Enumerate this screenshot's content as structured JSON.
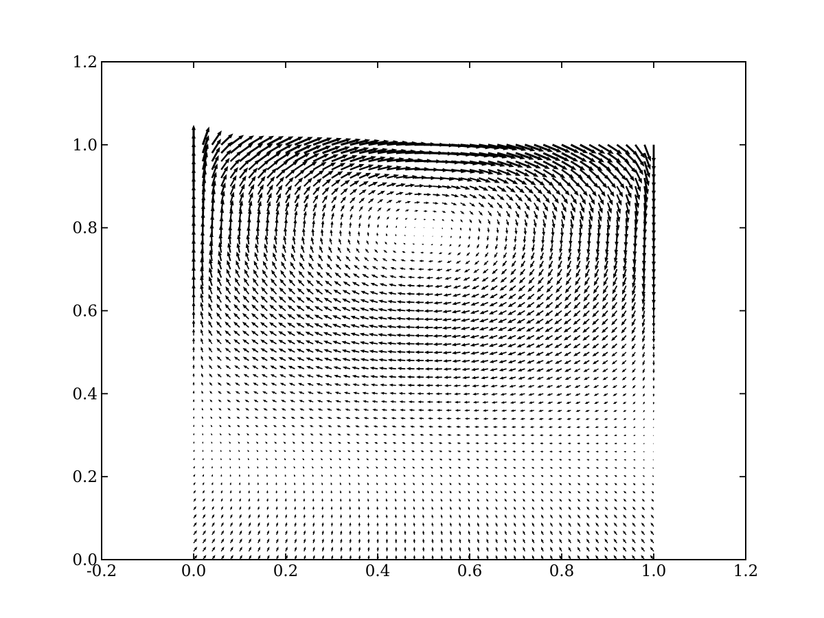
{
  "figure": {
    "background": "#ffffff",
    "frame_color": "#000000",
    "title": ""
  },
  "chart_data": {
    "type": "quiver",
    "title": "",
    "xlabel": "",
    "ylabel": "",
    "description": "Velocity vector field of a lid-driven cavity flow: lid moves right along y=1, upward jet on left wall, downward jet on right wall, clockwise primary vortex centered near (0.5, 0.79), broad leftward return band below the vortex, weak rising flow converging toward x=0.5 near the bottom.",
    "arrow_color": "#000000",
    "xlim": [
      -0.2,
      1.2
    ],
    "ylim": [
      0.0,
      1.2
    ],
    "xtick_labels": [
      "-0.2",
      "0.0",
      "0.2",
      "0.4",
      "0.6",
      "0.8",
      "1.0",
      "1.2"
    ],
    "xtick_values": [
      -0.2,
      0.0,
      0.2,
      0.4,
      0.6,
      0.8,
      1.0,
      1.2
    ],
    "ytick_labels": [
      "0.0",
      "0.2",
      "0.4",
      "0.6",
      "0.8",
      "1.0",
      "1.2"
    ],
    "ytick_values": [
      0.0,
      0.2,
      0.4,
      0.6,
      0.8,
      1.0,
      1.2
    ],
    "tick_direction": "in",
    "grid": {
      "nx": 51,
      "ny": 51,
      "x_range": [
        0.0,
        1.0
      ],
      "y_range": [
        0.0,
        1.0
      ]
    },
    "field_model": {
      "vortex_center": [
        0.5,
        0.79
      ],
      "vortex_sense": "clockwise",
      "ellipse_rx": 0.46,
      "ellipse_ry": 0.26,
      "radial_decay": 0.48,
      "strength_base": 0.4,
      "strength_y_gain": 0.6,
      "strength_y_pow": 1.5,
      "side_wall_width": 0.05,
      "left_wall_jet": 0.5,
      "right_wall_jet": 0.42,
      "jet_width": 0.045,
      "lid_boost": 0.32,
      "lid_width": 0.08,
      "lid_profile_pow": 0.3,
      "bottom_amp": 0.26,
      "bottom_decay_y": 0.22,
      "bottom_converge": 1.2,
      "bottom_up": 0.85,
      "pixel_scale": 34
    }
  }
}
